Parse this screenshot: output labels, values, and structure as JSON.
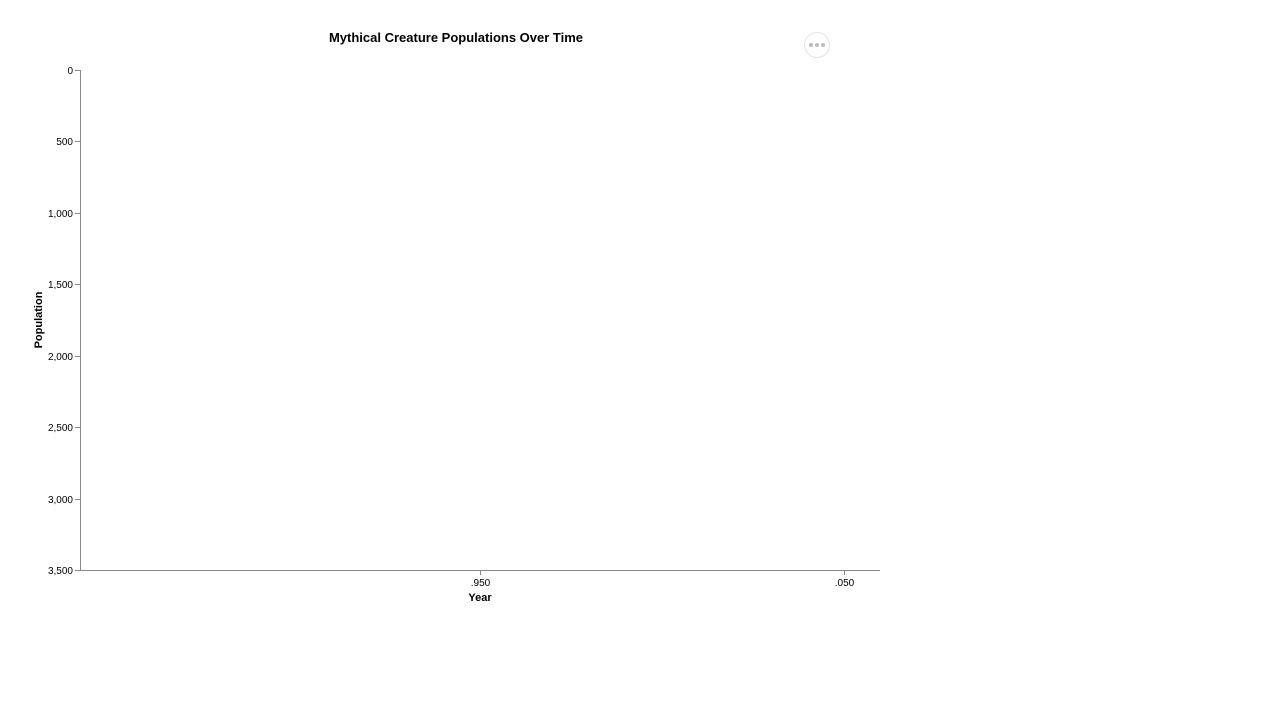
{
  "chart_data": {
    "type": "line",
    "title": "Mythical Creature Populations Over Time",
    "xlabel": "Year",
    "ylabel": "Population",
    "x_ticks": [
      ".950",
      ".050"
    ],
    "y_ticks": [
      "0",
      "500",
      "1,000",
      "1,500",
      "2,000",
      "2,500",
      "3,000",
      "3,500"
    ],
    "ylim": [
      0,
      3500
    ],
    "y_reversed": true,
    "series": [],
    "grid": false
  },
  "actions_menu": {
    "icon": "more-horizontal-icon"
  }
}
